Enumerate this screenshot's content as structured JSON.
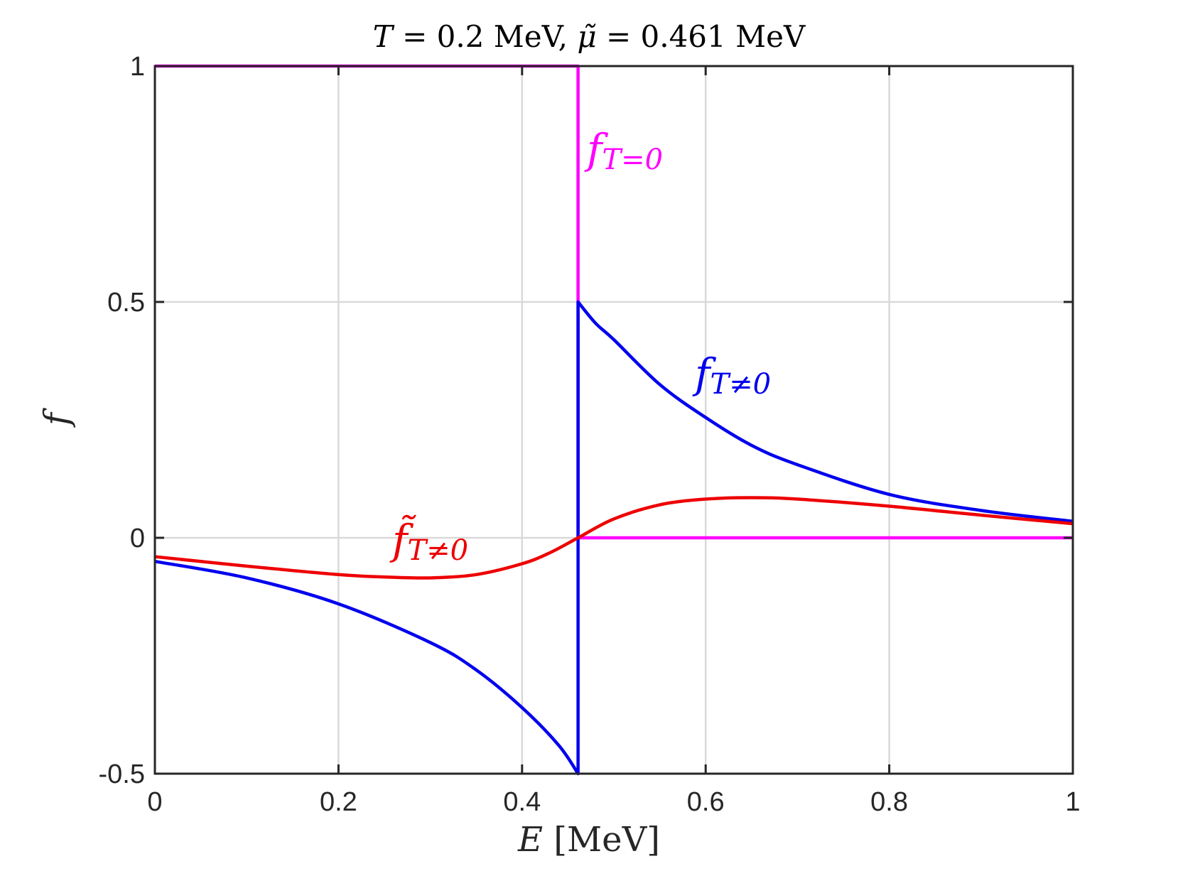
{
  "chart_data": {
    "type": "line",
    "title_parts": {
      "t": "T",
      "t_eq": " = 0.2 MeV, ",
      "mu": "μ̃",
      "mu_eq": " = 0.461 MeV"
    },
    "xlabel_parts": {
      "var": "E",
      "unit": " [MeV]"
    },
    "ylabel": "f",
    "xlim": [
      0,
      1
    ],
    "ylim": [
      -0.5,
      1
    ],
    "xticks": [
      0,
      0.2,
      0.4,
      0.6,
      0.8,
      1
    ],
    "xtick_labels": [
      "0",
      "0.2",
      "0.4",
      "0.6",
      "0.8",
      "1"
    ],
    "yticks": [
      -0.5,
      0,
      0.5,
      1
    ],
    "ytick_labels": [
      "-0.5",
      "0",
      "0.5",
      "1"
    ],
    "grid": true,
    "series": [
      {
        "label_main": "f",
        "label_sub": "T=0",
        "color": "#ff00ff",
        "x": [
          0,
          0.461,
          0.461,
          0.461,
          1
        ],
        "y": [
          1,
          1,
          0.5,
          0,
          0
        ]
      },
      {
        "label_main": "f",
        "label_sub": "T≠0",
        "color": "#0000ee",
        "x": [
          0,
          0.1,
          0.2,
          0.3,
          0.35,
          0.4,
          0.44,
          0.461,
          0.461,
          0.48,
          0.5,
          0.55,
          0.6,
          0.65,
          0.7,
          0.8,
          0.9,
          1
        ],
        "y": [
          -0.05,
          -0.085,
          -0.14,
          -0.222,
          -0.28,
          -0.36,
          -0.44,
          -0.5,
          0.5,
          0.455,
          0.42,
          0.325,
          0.255,
          0.196,
          0.155,
          0.092,
          0.058,
          0.035
        ]
      },
      {
        "label_main": "f̃",
        "label_sub": "T≠0",
        "color": "#ee0000",
        "x": [
          0,
          0.1,
          0.2,
          0.25,
          0.3,
          0.35,
          0.4,
          0.43,
          0.461,
          0.5,
          0.55,
          0.6,
          0.65,
          0.7,
          0.8,
          0.9,
          1
        ],
        "y": [
          -0.04,
          -0.06,
          -0.078,
          -0.083,
          -0.085,
          -0.078,
          -0.055,
          -0.032,
          0,
          0.04,
          0.07,
          0.082,
          0.085,
          0.082,
          0.067,
          0.048,
          0.03
        ]
      }
    ]
  }
}
